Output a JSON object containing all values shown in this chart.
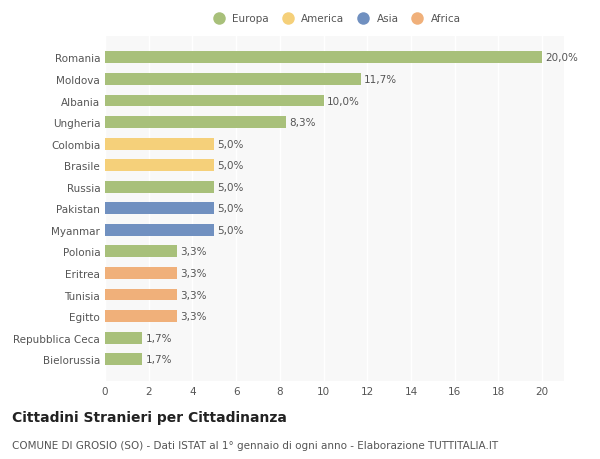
{
  "categories": [
    "Romania",
    "Moldova",
    "Albania",
    "Ungheria",
    "Colombia",
    "Brasile",
    "Russia",
    "Pakistan",
    "Myanmar",
    "Polonia",
    "Eritrea",
    "Tunisia",
    "Egitto",
    "Repubblica Ceca",
    "Bielorussia"
  ],
  "values": [
    20.0,
    11.7,
    10.0,
    8.3,
    5.0,
    5.0,
    5.0,
    5.0,
    5.0,
    3.3,
    3.3,
    3.3,
    3.3,
    1.7,
    1.7
  ],
  "labels": [
    "20,0%",
    "11,7%",
    "10,0%",
    "8,3%",
    "5,0%",
    "5,0%",
    "5,0%",
    "5,0%",
    "5,0%",
    "3,3%",
    "3,3%",
    "3,3%",
    "3,3%",
    "1,7%",
    "1,7%"
  ],
  "colors": [
    "#a8c07a",
    "#a8c07a",
    "#a8c07a",
    "#a8c07a",
    "#f5d07a",
    "#f5d07a",
    "#a8c07a",
    "#7090c0",
    "#7090c0",
    "#a8c07a",
    "#f0b07a",
    "#f0b07a",
    "#f0b07a",
    "#a8c07a",
    "#a8c07a"
  ],
  "legend_labels": [
    "Europa",
    "America",
    "Asia",
    "Africa"
  ],
  "legend_colors": [
    "#a8c07a",
    "#f5d07a",
    "#7090c0",
    "#f0b07a"
  ],
  "xlim": [
    0,
    21
  ],
  "xticks": [
    0,
    2,
    4,
    6,
    8,
    10,
    12,
    14,
    16,
    18,
    20
  ],
  "title": "Cittadini Stranieri per Cittadinanza",
  "subtitle": "COMUNE DI GROSIO (SO) - Dati ISTAT al 1° gennaio di ogni anno - Elaborazione TUTTITALIA.IT",
  "background_color": "#ffffff",
  "plot_bg_color": "#f8f8f8",
  "bar_height": 0.55,
  "grid_color": "#ffffff",
  "label_fontsize": 7.5,
  "ytick_fontsize": 7.5,
  "xtick_fontsize": 7.5,
  "title_fontsize": 10,
  "subtitle_fontsize": 7.5
}
